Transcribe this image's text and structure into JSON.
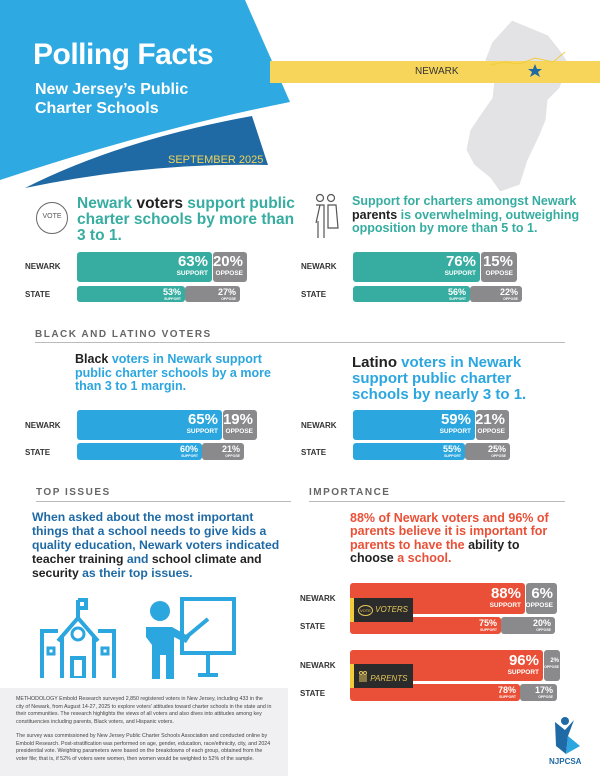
{
  "header": {
    "title": "Polling Facts",
    "subtitle_line1": "New Jersey’s Public",
    "subtitle_line2": "Charter Schools",
    "date": "SEPTEMBER 2025",
    "location": "NEWARK"
  },
  "colors": {
    "teal": "#36ada0",
    "blue": "#2ba6df",
    "red": "#ea5037",
    "gray": "#8a8a8c",
    "yellow": "#f7d55a",
    "navy": "#1f6aa5"
  },
  "voters": {
    "icon_text": "VOTE",
    "heading_a": "Newark ",
    "heading_b": "voters",
    "heading_c": " support public charter schools by more than 3 to 1.",
    "newark": {
      "label": "NEWARK",
      "support": "63%",
      "oppose": "20%"
    },
    "state": {
      "label": "STATE",
      "support": "53%",
      "oppose": "27%"
    }
  },
  "parents": {
    "heading_a": "Support for charters amongst Newark ",
    "heading_b": "parents",
    "heading_c": " is overwhelming, outweighing opposition by more than 5 to 1.",
    "newark": {
      "label": "NEWARK",
      "support": "76%",
      "oppose": "15%"
    },
    "state": {
      "label": "STATE",
      "support": "56%",
      "oppose": "22%"
    }
  },
  "labels": {
    "support": "SUPPORT",
    "oppose": "OPPOSE"
  },
  "black_latino": {
    "section": "BLACK AND LATINO VOTERS",
    "black": {
      "heading_a": "Black",
      "heading_b": " voters in Newark support public charter schools by a more than 3 to 1 margin.",
      "newark": {
        "label": "NEWARK",
        "support": "65%",
        "oppose": "19%"
      },
      "state": {
        "label": "STATE",
        "support": "60%",
        "oppose": "21%"
      }
    },
    "latino": {
      "heading_a": "Latino",
      "heading_b": " voters in Newark support public charter schools by nearly 3 to 1.",
      "newark": {
        "label": "NEWARK",
        "support": "59%",
        "oppose": "21%"
      },
      "state": {
        "label": "STATE",
        "support": "55%",
        "oppose": "25%"
      }
    }
  },
  "top_issues": {
    "section": "TOP ISSUES",
    "t1": "When asked about the most important things that a school needs to give kids a quality education, Newark voters indicated ",
    "t2": "teacher training",
    "t3": " and ",
    "t4": "school climate and security",
    "t5": " as their top issues."
  },
  "importance": {
    "section": "IMPORTANCE",
    "t1": "88% of Newark voters and 96% of parents believe it is important for parents to have the ",
    "t2": "ability to choose",
    "t3": " a school.",
    "voters": {
      "tag": "VOTERS",
      "icon_text": "VOTE",
      "newark": {
        "label": "NEWARK",
        "support": "88%",
        "oppose": "6%"
      },
      "state": {
        "label": "STATE",
        "support": "75%",
        "oppose": "20%"
      }
    },
    "parents": {
      "tag": "PARENTS",
      "newark": {
        "label": "NEWARK",
        "support": "96%",
        "oppose": "2%"
      },
      "state": {
        "label": "STATE",
        "support": "78%",
        "oppose": "17%"
      }
    }
  },
  "methodology": {
    "p1": "METHODOLOGY  Embold Research surveyed 2,850 registered voters in New Jersey, including 433 in the city of Newark, from August 14-27, 2025  to explore voters' attitudes toward charter schools in the state and in their communities.  The research highlights the views of  all voters and also dives into attitudes among key constituencies including parents, Black voters, and Hispanic voters.",
    "p2": "The survey was commissioned by New Jersey Public Charter Schools Association and conducted online by Embold Research. Post-stratification was performed on age, gender, education, race/ethnicity, city, and 2024 presidential vote. Weighting parameters were based on the breakdowns of each group, obtained from the voter file; that is, if 52% of voters were women, then women would be weighted to 52% of the sample."
  },
  "logo": {
    "text": "NJPCSA"
  }
}
